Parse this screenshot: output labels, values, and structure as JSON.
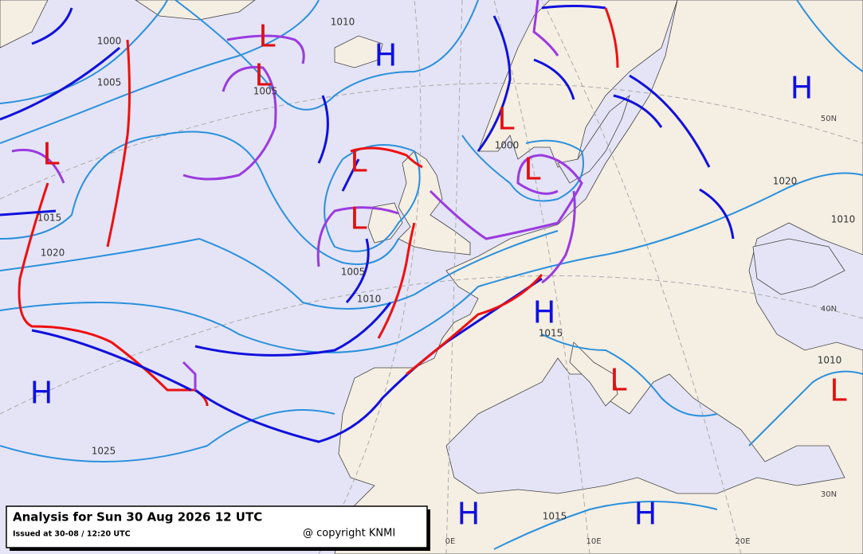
{
  "header": {
    "title": "Analysis for Sun 30 Aug 2026 12 UTC",
    "issued": "Issued at 30-08 / 12:20 UTC",
    "copyright": "@ copyright KNMI"
  },
  "pressure_centers": [
    "H",
    "L",
    "L",
    "L",
    "L",
    "L",
    "L",
    "L",
    "H",
    "H",
    "L",
    "L",
    "H",
    "H",
    "H"
  ],
  "isobar_labels": [
    "1010",
    "1000",
    "1005",
    "1005",
    "1015",
    "1020",
    "1005",
    "1010",
    "1000",
    "1020",
    "1010",
    "1015",
    "1010",
    "1025",
    "1015"
  ],
  "graticule_labels": [
    "50N",
    "40N",
    "30N",
    "0E",
    "10E",
    "20E"
  ]
}
